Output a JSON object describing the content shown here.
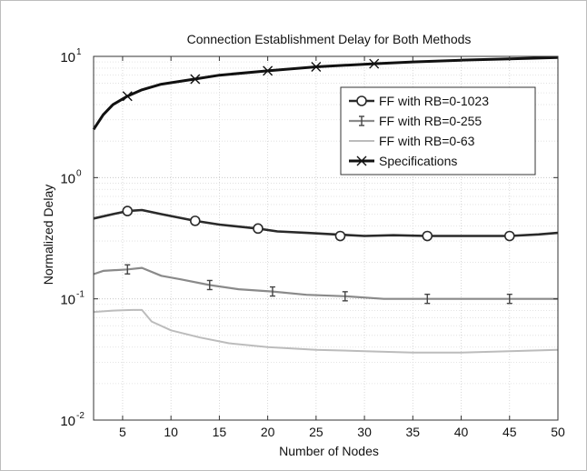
{
  "chart_data": {
    "type": "line",
    "title": "Connection Establishment Delay for Both Methods",
    "xlabel": "Number of Nodes",
    "ylabel": "Normalized Delay",
    "xlim": [
      2,
      50
    ],
    "ylim": [
      0.01,
      10
    ],
    "y_scale": "log",
    "x_ticks": [
      5,
      10,
      15,
      20,
      25,
      30,
      35,
      40,
      45,
      50
    ],
    "y_ticks": [
      {
        "value": 0.01,
        "base": "10",
        "exp": "-2"
      },
      {
        "value": 0.1,
        "base": "10",
        "exp": "-1"
      },
      {
        "value": 1,
        "base": "10",
        "exp": "0"
      },
      {
        "value": 10,
        "base": "10",
        "exp": "1"
      }
    ],
    "grid": true,
    "legend_position": "top-right",
    "series": [
      {
        "name": "FF with RB=0-1023",
        "color": "#2a2a2a",
        "marker": "circle",
        "x": [
          2,
          4,
          5.5,
          7,
          9,
          12.5,
          15,
          19,
          21,
          24,
          27,
          30,
          33,
          36.5,
          40,
          45,
          48,
          50
        ],
        "y": [
          0.46,
          0.5,
          0.53,
          0.54,
          0.5,
          0.44,
          0.41,
          0.38,
          0.36,
          0.35,
          0.34,
          0.33,
          0.335,
          0.33,
          0.33,
          0.33,
          0.34,
          0.35
        ],
        "marker_x": [
          5.5,
          12.5,
          19,
          27.5,
          36.5,
          45
        ],
        "marker_y": [
          0.53,
          0.44,
          0.38,
          0.33,
          0.33,
          0.33
        ]
      },
      {
        "name": "FF with RB=0-255",
        "color": "#8a8a8a",
        "marker": "ibar",
        "x": [
          2,
          3,
          5.5,
          7,
          9,
          11,
          14,
          17,
          20.5,
          24,
          28,
          32,
          36.5,
          41,
          45,
          48,
          50
        ],
        "y": [
          0.16,
          0.17,
          0.175,
          0.18,
          0.155,
          0.145,
          0.13,
          0.12,
          0.115,
          0.108,
          0.105,
          0.1,
          0.1,
          0.1,
          0.1,
          0.1,
          0.1
        ],
        "marker_x": [
          5.5,
          14,
          20.5,
          28,
          36.5,
          45
        ],
        "marker_y": [
          0.175,
          0.13,
          0.115,
          0.105,
          0.1,
          0.1
        ]
      },
      {
        "name": "FF with RB=0-63",
        "color": "#bcbcbc",
        "marker": "none",
        "x": [
          2,
          4,
          6,
          7,
          8,
          10,
          13,
          16,
          20,
          25,
          30,
          35,
          40,
          45,
          50
        ],
        "y": [
          0.078,
          0.08,
          0.081,
          0.081,
          0.065,
          0.055,
          0.048,
          0.043,
          0.04,
          0.038,
          0.037,
          0.036,
          0.036,
          0.037,
          0.038
        ],
        "marker_x": [],
        "marker_y": []
      },
      {
        "name": "Specifications",
        "color": "#111111",
        "marker": "x",
        "x": [
          2,
          3,
          4,
          5.5,
          7,
          9,
          12.5,
          15,
          20,
          25,
          31,
          35,
          40,
          45,
          50
        ],
        "y": [
          2.5,
          3.3,
          4.0,
          4.7,
          5.3,
          5.9,
          6.5,
          7.0,
          7.6,
          8.2,
          8.7,
          9.0,
          9.3,
          9.55,
          9.8
        ],
        "marker_x": [
          5.5,
          12.5,
          20,
          25,
          31
        ],
        "marker_y": [
          4.7,
          6.5,
          7.6,
          8.2,
          8.7
        ]
      }
    ]
  }
}
